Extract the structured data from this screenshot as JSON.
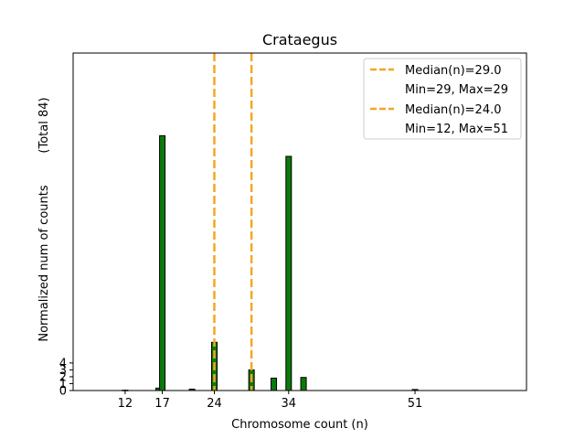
{
  "chart_data": {
    "type": "bar",
    "title": "Crataegus",
    "xlabel": "Chromosome count (n)",
    "ylabel": "Normalized num of counts",
    "ylabel_extra": "(Total 84)",
    "xlim": [
      5,
      66
    ],
    "ylim": [
      0,
      49
    ],
    "x_ticks": [
      12,
      17,
      24,
      34,
      51
    ],
    "y_ticks": [
      0,
      1,
      2,
      3,
      4
    ],
    "bar_color": "#0a7a0a",
    "bar_edge_color": "#000000",
    "line_color": "#f5a623",
    "bars": [
      {
        "x": 12,
        "y": 0.05
      },
      {
        "x": 16.5,
        "y": 0.35
      },
      {
        "x": 17,
        "y": 37
      },
      {
        "x": 21,
        "y": 0.2
      },
      {
        "x": 24,
        "y": 7
      },
      {
        "x": 29,
        "y": 3
      },
      {
        "x": 32,
        "y": 1.8
      },
      {
        "x": 34,
        "y": 34
      },
      {
        "x": 36,
        "y": 1.9
      },
      {
        "x": 51,
        "y": 0.15
      }
    ],
    "median_lines": [
      {
        "x": 24,
        "label": "Median(n)=24.0",
        "range_label": "Min=12, Max=51"
      },
      {
        "x": 29,
        "label": "Median(n)=29.0",
        "range_label": "Min=29, Max=29"
      }
    ],
    "legend": {
      "placement": "top-right",
      "entries": [
        {
          "label": "Median(n)=29.0",
          "marker": "dashed-line"
        },
        {
          "label": "Min=29, Max=29",
          "marker": "none"
        },
        {
          "label": "Median(n)=24.0",
          "marker": "dashed-line"
        },
        {
          "label": "Min=12, Max=51",
          "marker": "none"
        }
      ]
    }
  }
}
